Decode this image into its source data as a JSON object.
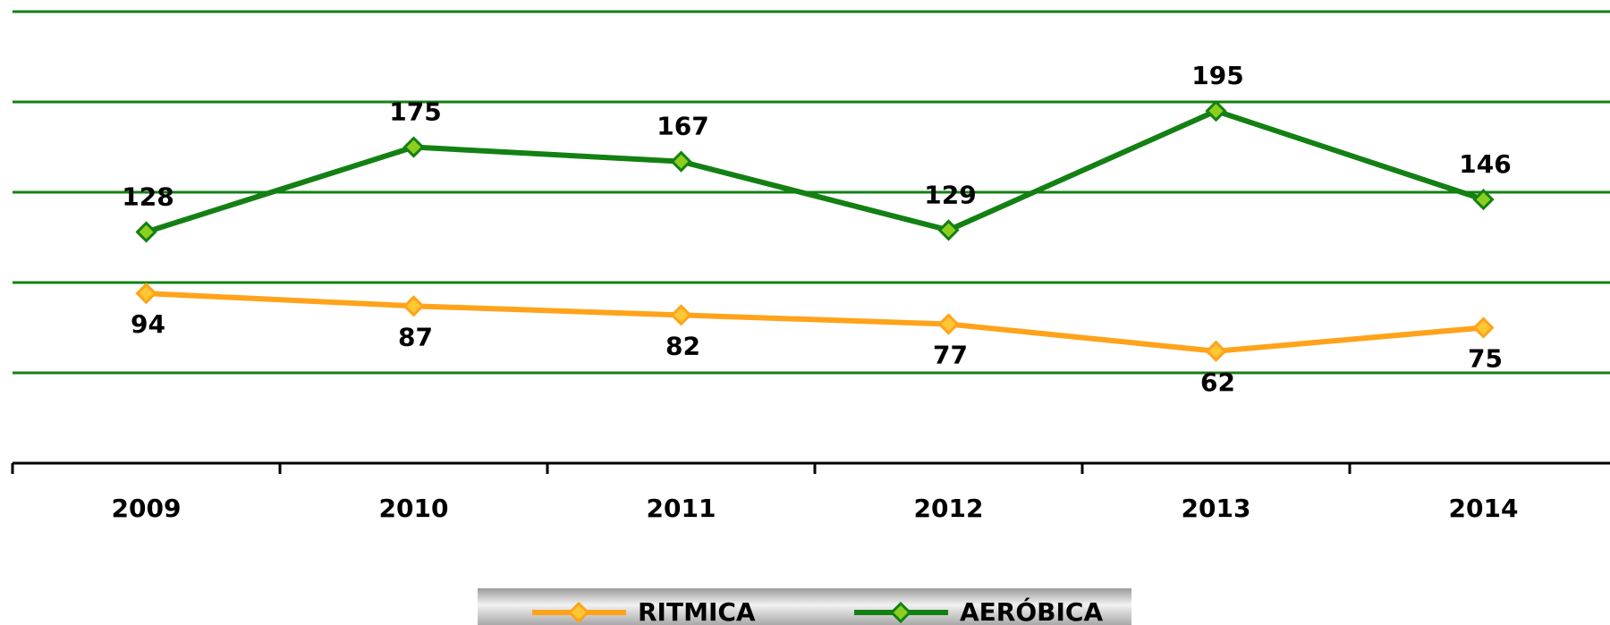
{
  "chart_data": {
    "type": "line",
    "categories": [
      "2009",
      "2010",
      "2011",
      "2012",
      "2013",
      "2014"
    ],
    "series": [
      {
        "name": "RITMICA",
        "color": "#ffa31a",
        "marker_color": "#ffc733",
        "values": [
          94,
          87,
          82,
          77,
          62,
          75
        ]
      },
      {
        "name": "AERÓBICA",
        "color": "#138013",
        "marker_color": "#8ccf1f",
        "values": [
          128,
          175,
          167,
          129,
          195,
          146
        ]
      }
    ],
    "ylim": [
      0,
      250
    ],
    "yticks": [
      50,
      100,
      150,
      200,
      250
    ],
    "grid": true,
    "grid_color": "#138013",
    "legend": "bottom"
  }
}
